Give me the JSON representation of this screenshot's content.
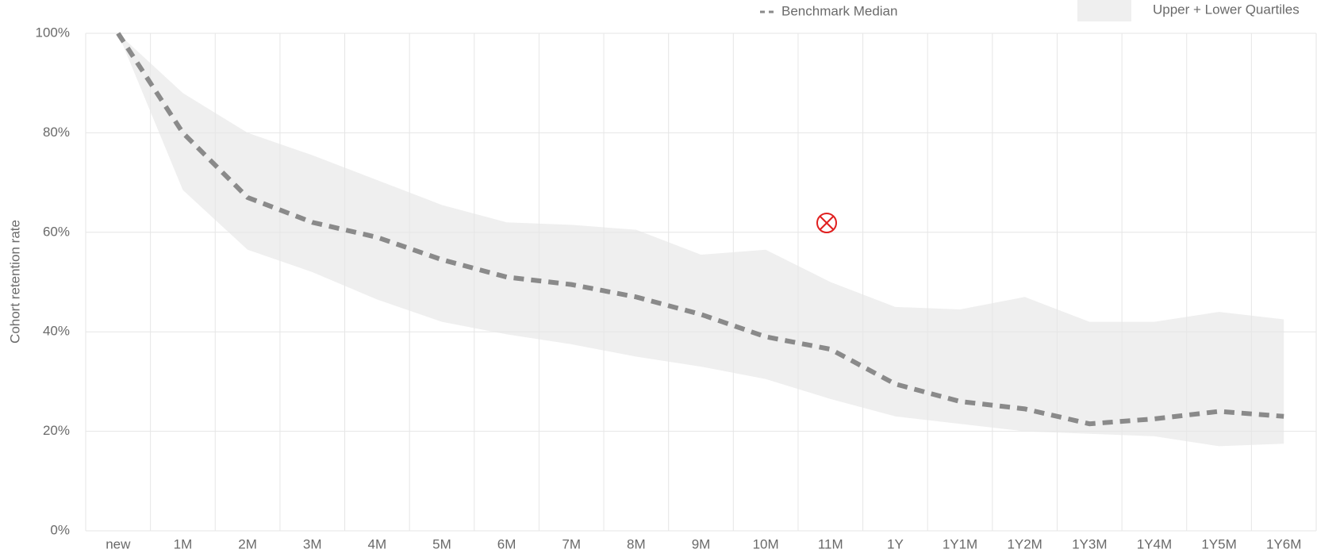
{
  "chart_data": {
    "type": "line",
    "y_label": "Cohort retention rate",
    "categories": [
      "new",
      "1M",
      "2M",
      "3M",
      "4M",
      "5M",
      "6M",
      "7M",
      "8M",
      "9M",
      "10M",
      "11M",
      "1Y",
      "1Y1M",
      "1Y2M",
      "1Y3M",
      "1Y4M",
      "1Y5M",
      "1Y6M"
    ],
    "series": [
      {
        "name": "Benchmark Median",
        "color": "#8a8a8a",
        "values": [
          100,
          80,
          67,
          62,
          59,
          54.5,
          51,
          49.5,
          47,
          43.5,
          39,
          36.5,
          29.5,
          26,
          24.5,
          21.5,
          22.5,
          24,
          23
        ]
      }
    ],
    "band": {
      "name": "Upper + Lower Quartiles",
      "color": "#efefef",
      "upper": [
        100,
        88,
        80,
        75.5,
        70.5,
        65.5,
        62,
        61.5,
        60.5,
        55.5,
        56.5,
        50,
        45,
        44.5,
        47,
        42,
        42,
        44,
        42.5
      ],
      "lower": [
        100,
        68.5,
        56.5,
        52,
        46.5,
        42,
        39.5,
        37.5,
        35,
        33,
        30.5,
        26.5,
        23,
        21.5,
        20,
        19.5,
        19,
        17,
        17.5
      ]
    },
    "ylim": [
      0,
      100
    ],
    "yticks": [
      {
        "value": 0,
        "label": "0%"
      },
      {
        "value": 20,
        "label": "20%"
      },
      {
        "value": 40,
        "label": "40%"
      },
      {
        "value": 60,
        "label": "60%"
      },
      {
        "value": 80,
        "label": "80%"
      },
      {
        "value": 100,
        "label": "100%"
      }
    ],
    "grid": true
  }
}
